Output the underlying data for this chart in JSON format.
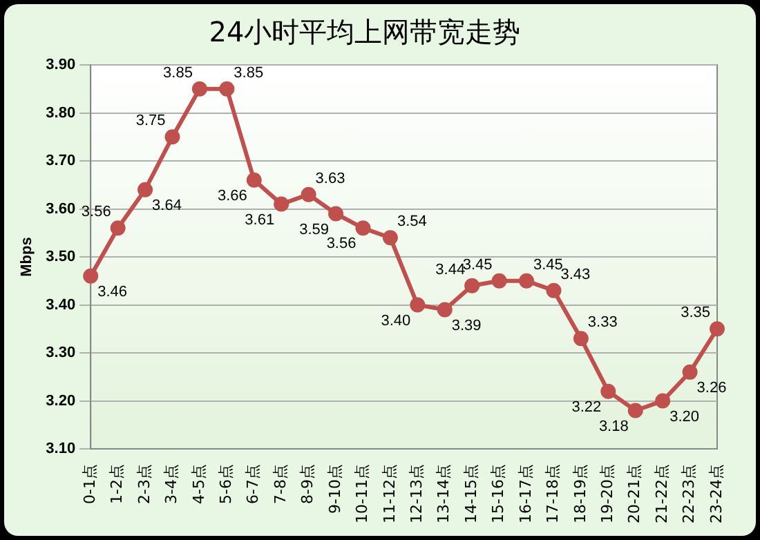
{
  "chart_data": {
    "type": "line",
    "title": "24小时平均上网带宽走势",
    "ylabel": "Mbps",
    "categories": [
      "0-1点",
      "1-2点",
      "2-3点",
      "3-4点",
      "4-5点",
      "5-6点",
      "6-7点",
      "7-8点",
      "8-9点",
      "9-10点",
      "10-11点",
      "11-12点",
      "12-13点",
      "13-14点",
      "14-15点",
      "15-16点",
      "16-17点",
      "17-18点",
      "18-19点",
      "19-20点",
      "20-21点",
      "21-22点",
      "22-23点",
      "23-24点"
    ],
    "series": [
      {
        "color": "#c0504d",
        "values": [
          3.46,
          3.56,
          3.64,
          3.75,
          3.85,
          3.85,
          3.66,
          3.61,
          3.63,
          3.59,
          3.56,
          3.54,
          3.4,
          3.39,
          3.44,
          3.45,
          3.45,
          3.43,
          3.33,
          3.22,
          3.18,
          3.2,
          3.26,
          3.35
        ],
        "value_labels": [
          "3.46",
          "3.56",
          "3.64",
          "3.75",
          "3.85",
          "3.85",
          "3.66",
          "3.61",
          "3.63",
          "3.59",
          "3.56",
          "3.54",
          "3.40",
          "3.39",
          "3.44",
          "3.45",
          "3.45",
          "3.43",
          "3.33",
          "3.22",
          "3.18",
          "3.20",
          "3.26",
          "3.35"
        ]
      }
    ],
    "ylim": [
      3.1,
      3.9
    ],
    "yticks": [
      {
        "value": 3.1,
        "label": "3.10"
      },
      {
        "value": 3.2,
        "label": "3.20"
      },
      {
        "value": 3.3,
        "label": "3.30"
      },
      {
        "value": 3.4,
        "label": "3.40"
      },
      {
        "value": 3.5,
        "label": "3.50"
      },
      {
        "value": 3.6,
        "label": "3.60"
      },
      {
        "value": 3.7,
        "label": "3.70"
      },
      {
        "value": 3.8,
        "label": "3.80"
      },
      {
        "value": 3.9,
        "label": "3.90"
      }
    ],
    "grid": "y",
    "marker": "circle",
    "line_style": "solid",
    "legend": false
  }
}
